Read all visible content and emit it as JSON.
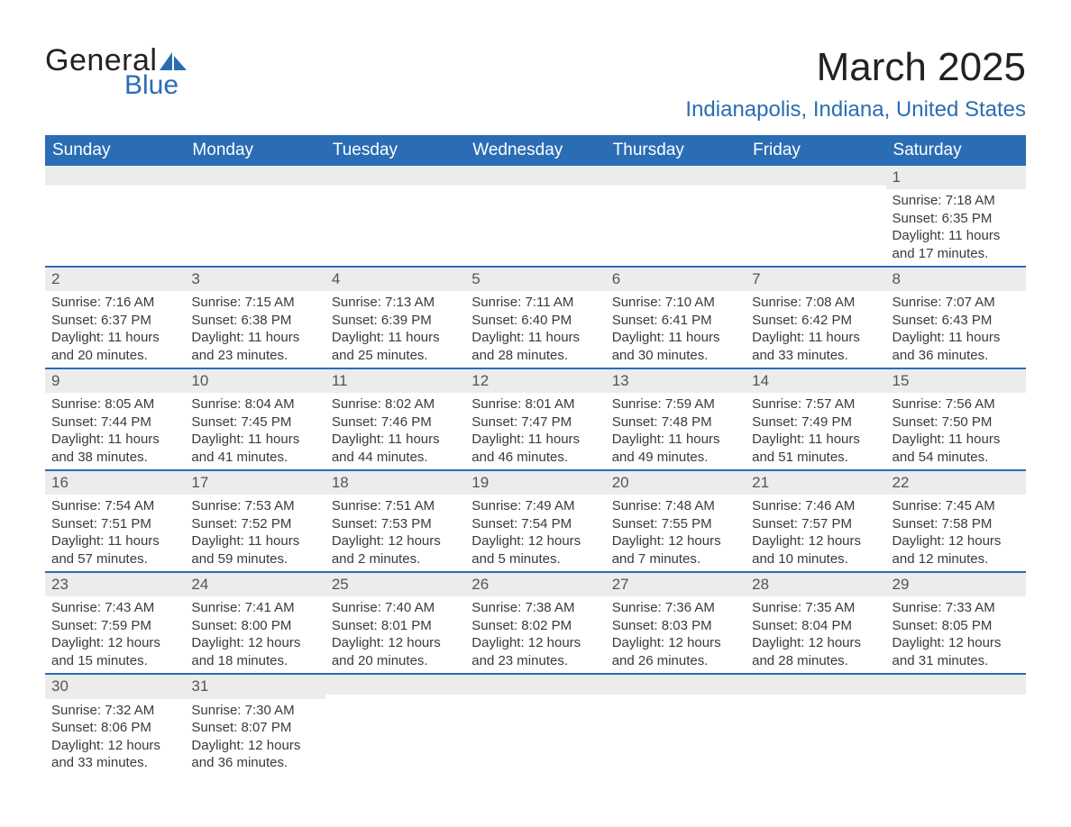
{
  "brand": {
    "name_part1": "General",
    "name_part2": "Blue",
    "color_primary": "#2a6db4",
    "color_text": "#222222"
  },
  "title": "March 2025",
  "location": "Indianapolis, Indiana, United States",
  "colors": {
    "header_bg": "#2a6db4",
    "header_text": "#ffffff",
    "band_bg": "#ececec",
    "row_border": "#2a6db4",
    "body_text": "#3a3a3a"
  },
  "day_headers": [
    "Sunday",
    "Monday",
    "Tuesday",
    "Wednesday",
    "Thursday",
    "Friday",
    "Saturday"
  ],
  "weeks": [
    [
      {
        "day": "",
        "sunrise": "",
        "sunset": "",
        "daylight": ""
      },
      {
        "day": "",
        "sunrise": "",
        "sunset": "",
        "daylight": ""
      },
      {
        "day": "",
        "sunrise": "",
        "sunset": "",
        "daylight": ""
      },
      {
        "day": "",
        "sunrise": "",
        "sunset": "",
        "daylight": ""
      },
      {
        "day": "",
        "sunrise": "",
        "sunset": "",
        "daylight": ""
      },
      {
        "day": "",
        "sunrise": "",
        "sunset": "",
        "daylight": ""
      },
      {
        "day": "1",
        "sunrise": "Sunrise: 7:18 AM",
        "sunset": "Sunset: 6:35 PM",
        "daylight": "Daylight: 11 hours and 17 minutes."
      }
    ],
    [
      {
        "day": "2",
        "sunrise": "Sunrise: 7:16 AM",
        "sunset": "Sunset: 6:37 PM",
        "daylight": "Daylight: 11 hours and 20 minutes."
      },
      {
        "day": "3",
        "sunrise": "Sunrise: 7:15 AM",
        "sunset": "Sunset: 6:38 PM",
        "daylight": "Daylight: 11 hours and 23 minutes."
      },
      {
        "day": "4",
        "sunrise": "Sunrise: 7:13 AM",
        "sunset": "Sunset: 6:39 PM",
        "daylight": "Daylight: 11 hours and 25 minutes."
      },
      {
        "day": "5",
        "sunrise": "Sunrise: 7:11 AM",
        "sunset": "Sunset: 6:40 PM",
        "daylight": "Daylight: 11 hours and 28 minutes."
      },
      {
        "day": "6",
        "sunrise": "Sunrise: 7:10 AM",
        "sunset": "Sunset: 6:41 PM",
        "daylight": "Daylight: 11 hours and 30 minutes."
      },
      {
        "day": "7",
        "sunrise": "Sunrise: 7:08 AM",
        "sunset": "Sunset: 6:42 PM",
        "daylight": "Daylight: 11 hours and 33 minutes."
      },
      {
        "day": "8",
        "sunrise": "Sunrise: 7:07 AM",
        "sunset": "Sunset: 6:43 PM",
        "daylight": "Daylight: 11 hours and 36 minutes."
      }
    ],
    [
      {
        "day": "9",
        "sunrise": "Sunrise: 8:05 AM",
        "sunset": "Sunset: 7:44 PM",
        "daylight": "Daylight: 11 hours and 38 minutes."
      },
      {
        "day": "10",
        "sunrise": "Sunrise: 8:04 AM",
        "sunset": "Sunset: 7:45 PM",
        "daylight": "Daylight: 11 hours and 41 minutes."
      },
      {
        "day": "11",
        "sunrise": "Sunrise: 8:02 AM",
        "sunset": "Sunset: 7:46 PM",
        "daylight": "Daylight: 11 hours and 44 minutes."
      },
      {
        "day": "12",
        "sunrise": "Sunrise: 8:01 AM",
        "sunset": "Sunset: 7:47 PM",
        "daylight": "Daylight: 11 hours and 46 minutes."
      },
      {
        "day": "13",
        "sunrise": "Sunrise: 7:59 AM",
        "sunset": "Sunset: 7:48 PM",
        "daylight": "Daylight: 11 hours and 49 minutes."
      },
      {
        "day": "14",
        "sunrise": "Sunrise: 7:57 AM",
        "sunset": "Sunset: 7:49 PM",
        "daylight": "Daylight: 11 hours and 51 minutes."
      },
      {
        "day": "15",
        "sunrise": "Sunrise: 7:56 AM",
        "sunset": "Sunset: 7:50 PM",
        "daylight": "Daylight: 11 hours and 54 minutes."
      }
    ],
    [
      {
        "day": "16",
        "sunrise": "Sunrise: 7:54 AM",
        "sunset": "Sunset: 7:51 PM",
        "daylight": "Daylight: 11 hours and 57 minutes."
      },
      {
        "day": "17",
        "sunrise": "Sunrise: 7:53 AM",
        "sunset": "Sunset: 7:52 PM",
        "daylight": "Daylight: 11 hours and 59 minutes."
      },
      {
        "day": "18",
        "sunrise": "Sunrise: 7:51 AM",
        "sunset": "Sunset: 7:53 PM",
        "daylight": "Daylight: 12 hours and 2 minutes."
      },
      {
        "day": "19",
        "sunrise": "Sunrise: 7:49 AM",
        "sunset": "Sunset: 7:54 PM",
        "daylight": "Daylight: 12 hours and 5 minutes."
      },
      {
        "day": "20",
        "sunrise": "Sunrise: 7:48 AM",
        "sunset": "Sunset: 7:55 PM",
        "daylight": "Daylight: 12 hours and 7 minutes."
      },
      {
        "day": "21",
        "sunrise": "Sunrise: 7:46 AM",
        "sunset": "Sunset: 7:57 PM",
        "daylight": "Daylight: 12 hours and 10 minutes."
      },
      {
        "day": "22",
        "sunrise": "Sunrise: 7:45 AM",
        "sunset": "Sunset: 7:58 PM",
        "daylight": "Daylight: 12 hours and 12 minutes."
      }
    ],
    [
      {
        "day": "23",
        "sunrise": "Sunrise: 7:43 AM",
        "sunset": "Sunset: 7:59 PM",
        "daylight": "Daylight: 12 hours and 15 minutes."
      },
      {
        "day": "24",
        "sunrise": "Sunrise: 7:41 AM",
        "sunset": "Sunset: 8:00 PM",
        "daylight": "Daylight: 12 hours and 18 minutes."
      },
      {
        "day": "25",
        "sunrise": "Sunrise: 7:40 AM",
        "sunset": "Sunset: 8:01 PM",
        "daylight": "Daylight: 12 hours and 20 minutes."
      },
      {
        "day": "26",
        "sunrise": "Sunrise: 7:38 AM",
        "sunset": "Sunset: 8:02 PM",
        "daylight": "Daylight: 12 hours and 23 minutes."
      },
      {
        "day": "27",
        "sunrise": "Sunrise: 7:36 AM",
        "sunset": "Sunset: 8:03 PM",
        "daylight": "Daylight: 12 hours and 26 minutes."
      },
      {
        "day": "28",
        "sunrise": "Sunrise: 7:35 AM",
        "sunset": "Sunset: 8:04 PM",
        "daylight": "Daylight: 12 hours and 28 minutes."
      },
      {
        "day": "29",
        "sunrise": "Sunrise: 7:33 AM",
        "sunset": "Sunset: 8:05 PM",
        "daylight": "Daylight: 12 hours and 31 minutes."
      }
    ],
    [
      {
        "day": "30",
        "sunrise": "Sunrise: 7:32 AM",
        "sunset": "Sunset: 8:06 PM",
        "daylight": "Daylight: 12 hours and 33 minutes."
      },
      {
        "day": "31",
        "sunrise": "Sunrise: 7:30 AM",
        "sunset": "Sunset: 8:07 PM",
        "daylight": "Daylight: 12 hours and 36 minutes."
      },
      {
        "day": "",
        "sunrise": "",
        "sunset": "",
        "daylight": ""
      },
      {
        "day": "",
        "sunrise": "",
        "sunset": "",
        "daylight": ""
      },
      {
        "day": "",
        "sunrise": "",
        "sunset": "",
        "daylight": ""
      },
      {
        "day": "",
        "sunrise": "",
        "sunset": "",
        "daylight": ""
      },
      {
        "day": "",
        "sunrise": "",
        "sunset": "",
        "daylight": ""
      }
    ]
  ]
}
